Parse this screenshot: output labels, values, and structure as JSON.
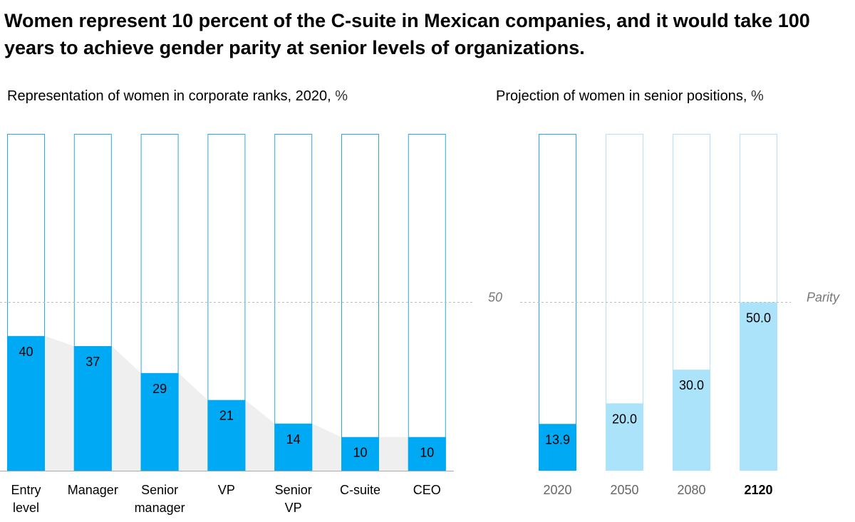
{
  "title": "Women represent 10 percent of the C-suite in Mexican companies, and it would take 100 years to achieve gender parity at senior levels of organizations.",
  "chart_data": [
    {
      "type": "bar",
      "title": "Representation of women in corporate ranks, 2020,",
      "unit": "%",
      "categories": [
        "Entry level",
        "Manager",
        "Senior manager",
        "VP",
        "Senior VP",
        "C-suite",
        "CEO"
      ],
      "values": [
        40,
        37,
        29,
        21,
        14,
        10,
        10
      ],
      "color": "#00a9f4",
      "outline_color": "#2ea6e6",
      "ylim": [
        0,
        100
      ],
      "yticks": [
        50
      ],
      "grid": true
    },
    {
      "type": "bar",
      "title": "Projection of women in senior positions,",
      "unit": "%",
      "categories": [
        "2020",
        "2050",
        "2080",
        "2120"
      ],
      "values": [
        13.9,
        20,
        30,
        50
      ],
      "value_labels": [
        "13.9",
        "20.0",
        "30.0",
        "50.0"
      ],
      "colors": [
        "#00a9f4",
        "#aae3fa",
        "#aae3fa",
        "#aae3fa"
      ],
      "outline_colors": [
        "#2ea6e6",
        "#b3e3f8",
        "#b3e3f8",
        "#b3e3f8"
      ],
      "bold_category": 3,
      "ylim": [
        0,
        100
      ],
      "yticks": [
        {
          "value": 50,
          "label": "Parity"
        }
      ],
      "grid": true
    }
  ]
}
